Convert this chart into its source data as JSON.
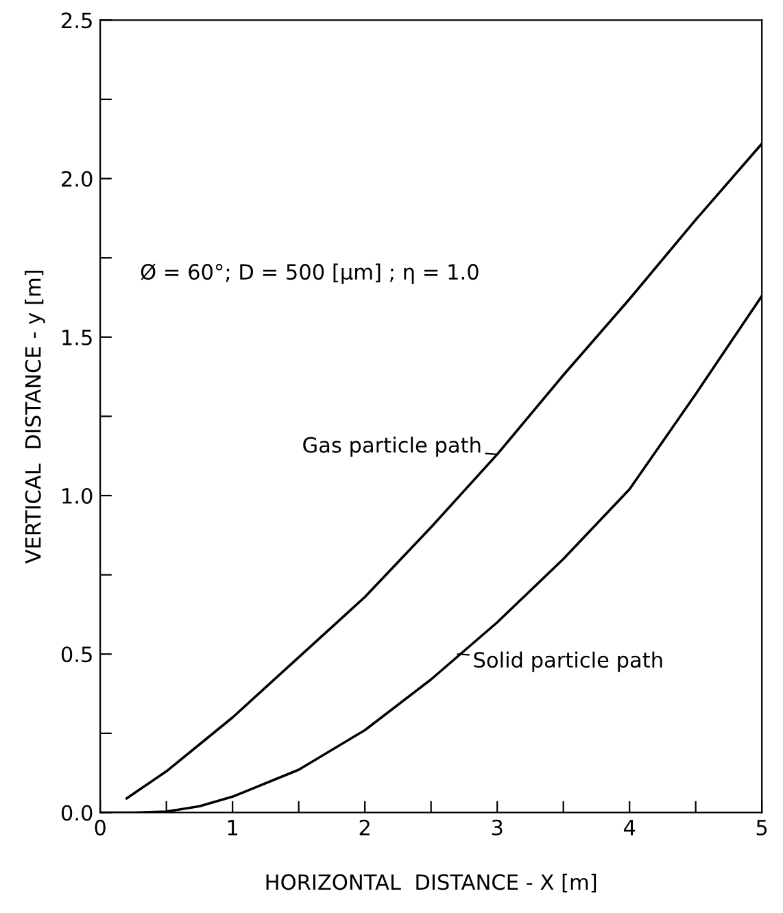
{
  "chart_data": {
    "type": "line",
    "xlabel": "HORIZONTAL  DISTANCE - X [m]",
    "ylabel": "VERTICAL  DISTANCE - y [m]",
    "xlim": [
      0,
      5
    ],
    "ylim": [
      0,
      2.5
    ],
    "xticks": [
      0,
      {
        "value": 0.5,
        "label": null
      },
      1,
      {
        "value": 1.5,
        "label": null
      },
      2,
      {
        "value": 2.5,
        "label": null
      },
      3,
      {
        "value": 3.5,
        "label": null
      },
      4,
      {
        "value": 4.5,
        "label": null
      },
      5
    ],
    "yticks": [
      {
        "value": 0,
        "label": "0.0"
      },
      {
        "value": 0.25,
        "label": null
      },
      0.5,
      {
        "value": 0.75,
        "label": null
      },
      {
        "value": 1,
        "label": "1.0"
      },
      {
        "value": 1.25,
        "label": null
      },
      1.5,
      {
        "value": 1.75,
        "label": null
      },
      {
        "value": 2,
        "label": "2.0"
      },
      {
        "value": 2.25,
        "label": null
      },
      2.5
    ],
    "grid": false,
    "legend": false,
    "marker": "none",
    "line_style": "solid",
    "series": [
      {
        "color": "#000000",
        "x": [
          0.2,
          0.5,
          1,
          1.5,
          2,
          2.5,
          3,
          3.5,
          4,
          4.5,
          5
        ],
        "values": [
          0.045,
          0.13,
          0.3,
          0.49,
          0.68,
          0.9,
          1.13,
          1.38,
          1.62,
          1.87,
          2.11
        ]
      },
      {
        "color": "#000000",
        "x": [
          0,
          0.25,
          0.5,
          0.75,
          1,
          1.5,
          2,
          2.5,
          3,
          3.5,
          4,
          4.5,
          5
        ],
        "values": [
          0,
          0,
          0.003,
          0.02,
          0.05,
          0.135,
          0.26,
          0.42,
          0.6,
          0.8,
          1.02,
          1.32,
          1.63
        ]
      }
    ],
    "annotations": [
      "Ø = 60°; D = 500 [μm] ; η = 1.0",
      {
        "text": "Gas particle path",
        "x": 3,
        "y": 1.13
      },
      {
        "text": "Solid particle path",
        "x": 2.7,
        "y": 0.5
      }
    ]
  }
}
